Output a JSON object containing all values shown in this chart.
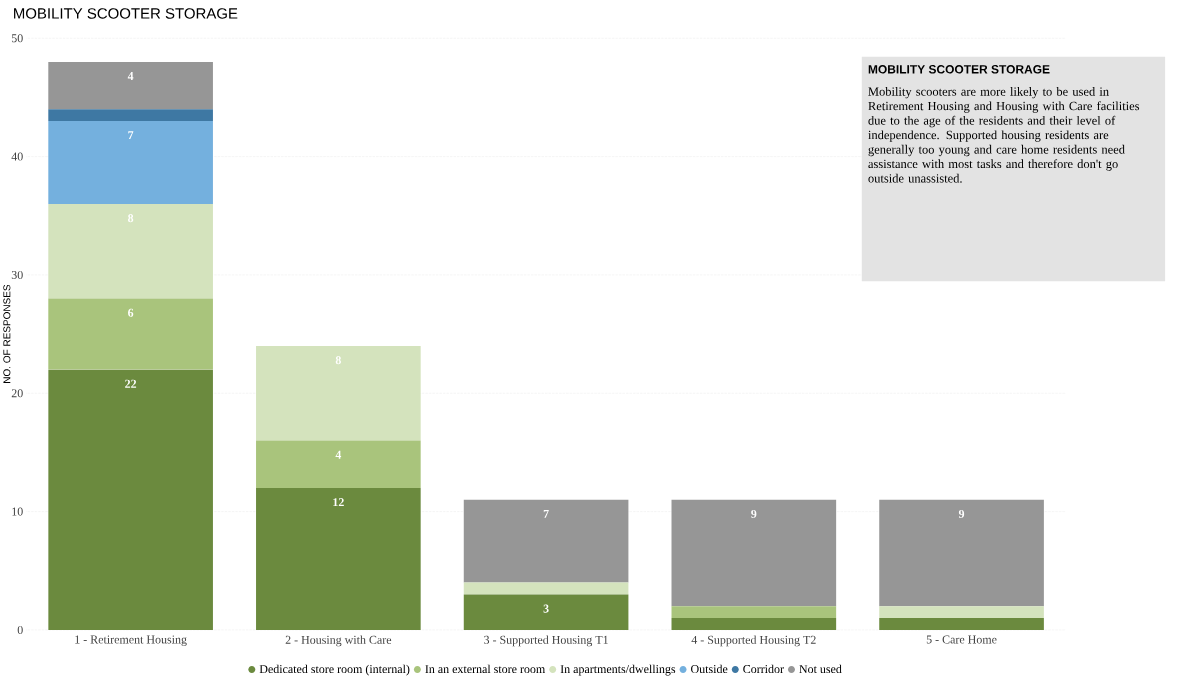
{
  "chart_data": {
    "type": "bar",
    "stacked": true,
    "title": "MOBILITY SCOOTER STORAGE",
    "ylabel": "NO. OF RESPONSES",
    "categories": [
      "1 - Retirement Housing",
      "2 - Housing with Care",
      "3 - Supported Housing T1",
      "4 - Supported Housing T2",
      "5 - Care Home"
    ],
    "series": [
      {
        "name": "Dedicated store room (internal)",
        "color": "#6b8a3e",
        "values": [
          22,
          12,
          3,
          1,
          1
        ],
        "value_labels": [
          "22",
          "12",
          "3",
          null,
          null
        ]
      },
      {
        "name": "In an external store room",
        "color": "#a9c47c",
        "values": [
          6,
          4,
          0,
          1,
          0
        ],
        "value_labels": [
          "6",
          "4",
          null,
          null,
          null
        ]
      },
      {
        "name": "In apartments/dwellings",
        "color": "#d4e3bd",
        "values": [
          8,
          8,
          1,
          0,
          1
        ],
        "value_labels": [
          "8",
          "8",
          null,
          null,
          null
        ]
      },
      {
        "name": "Outside",
        "color": "#74b0de",
        "values": [
          7,
          0,
          0,
          0,
          0
        ],
        "value_labels": [
          "7",
          null,
          null,
          null,
          null
        ]
      },
      {
        "name": "Corridor",
        "color": "#3e78a3",
        "values": [
          1,
          0,
          0,
          0,
          0
        ],
        "value_labels": [
          null,
          null,
          null,
          null,
          null
        ]
      },
      {
        "name": "Not used",
        "color": "#969696",
        "values": [
          4,
          0,
          7,
          9,
          9
        ],
        "value_labels": [
          "4",
          null,
          "7",
          "9",
          "9"
        ]
      }
    ],
    "ylim": [
      0,
      50
    ],
    "yticks": [
      0,
      10,
      20,
      30,
      40,
      50
    ],
    "grid": "y",
    "legend": "bottom",
    "marker": "circle",
    "annotations": [
      "MOBILITY SCOOTER STORAGE",
      "Mobility scooters are more likely to be used in Retirement Housing and Housing with Care facilities due to the age of the residents and their level of independence. Supported housing residents are generally too young and care home residents need assistance with most tasks and therefore don't go outside unassisted."
    ]
  }
}
